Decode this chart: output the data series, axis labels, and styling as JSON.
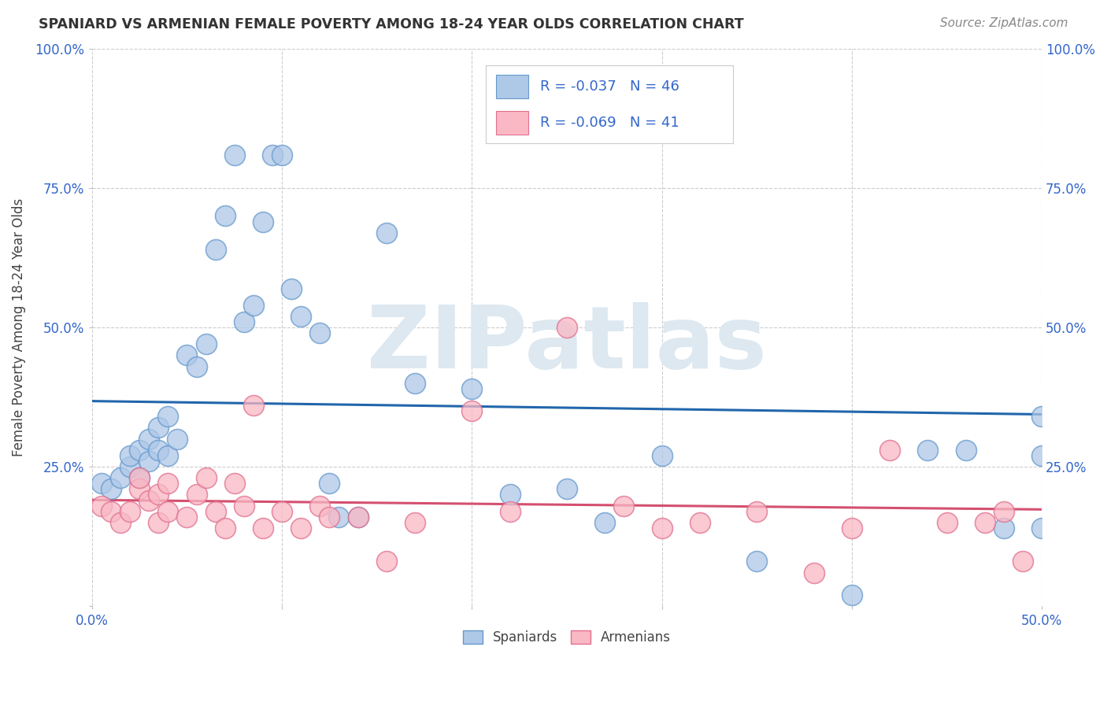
{
  "title": "SPANIARD VS ARMENIAN FEMALE POVERTY AMONG 18-24 YEAR OLDS CORRELATION CHART",
  "source": "Source: ZipAtlas.com",
  "ylabel": "Female Poverty Among 18-24 Year Olds",
  "xlim": [
    0.0,
    0.5
  ],
  "ylim": [
    0.0,
    1.0
  ],
  "spaniards_R": -0.037,
  "spaniards_N": 46,
  "armenians_R": -0.069,
  "armenians_N": 41,
  "spaniard_fill_color": "#aec8e8",
  "spaniard_edge_color": "#6699cc",
  "armenian_fill_color": "#f9b8c4",
  "armenian_edge_color": "#e07090",
  "spaniard_line_color": "#2166ac",
  "armenian_line_color": "#d45070",
  "watermark": "ZIPatlas",
  "watermark_color": "#dde8f0",
  "legend_text_color": "#3366cc",
  "axis_text_color": "#3366cc",
  "background_color": "#ffffff",
  "grid_color": "#cccccc",
  "spaniards_x": [
    0.005,
    0.01,
    0.015,
    0.02,
    0.02,
    0.025,
    0.025,
    0.03,
    0.03,
    0.035,
    0.035,
    0.04,
    0.04,
    0.045,
    0.05,
    0.055,
    0.06,
    0.065,
    0.07,
    0.075,
    0.08,
    0.085,
    0.09,
    0.095,
    0.1,
    0.105,
    0.11,
    0.12,
    0.125,
    0.13,
    0.14,
    0.155,
    0.17,
    0.2,
    0.22,
    0.25,
    0.27,
    0.3,
    0.35,
    0.4,
    0.44,
    0.46,
    0.48,
    0.5,
    0.5,
    0.5
  ],
  "spaniards_y": [
    0.22,
    0.21,
    0.23,
    0.25,
    0.27,
    0.23,
    0.28,
    0.26,
    0.3,
    0.28,
    0.32,
    0.27,
    0.34,
    0.3,
    0.45,
    0.43,
    0.47,
    0.64,
    0.7,
    0.81,
    0.51,
    0.54,
    0.69,
    0.81,
    0.81,
    0.57,
    0.52,
    0.49,
    0.22,
    0.16,
    0.16,
    0.67,
    0.4,
    0.39,
    0.2,
    0.21,
    0.15,
    0.27,
    0.08,
    0.02,
    0.28,
    0.28,
    0.14,
    0.14,
    0.27,
    0.34
  ],
  "armenians_x": [
    0.005,
    0.01,
    0.015,
    0.02,
    0.025,
    0.025,
    0.03,
    0.035,
    0.035,
    0.04,
    0.04,
    0.05,
    0.055,
    0.06,
    0.065,
    0.07,
    0.075,
    0.08,
    0.085,
    0.09,
    0.1,
    0.11,
    0.12,
    0.125,
    0.14,
    0.155,
    0.17,
    0.2,
    0.22,
    0.25,
    0.28,
    0.3,
    0.32,
    0.35,
    0.38,
    0.4,
    0.42,
    0.45,
    0.47,
    0.48,
    0.49
  ],
  "armenians_y": [
    0.18,
    0.17,
    0.15,
    0.17,
    0.21,
    0.23,
    0.19,
    0.15,
    0.2,
    0.22,
    0.17,
    0.16,
    0.2,
    0.23,
    0.17,
    0.14,
    0.22,
    0.18,
    0.36,
    0.14,
    0.17,
    0.14,
    0.18,
    0.16,
    0.16,
    0.08,
    0.15,
    0.35,
    0.17,
    0.5,
    0.18,
    0.14,
    0.15,
    0.17,
    0.06,
    0.14,
    0.28,
    0.15,
    0.15,
    0.17,
    0.08
  ]
}
